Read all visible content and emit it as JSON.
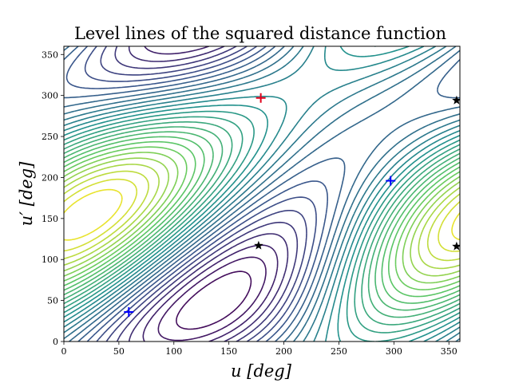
{
  "chart_data": {
    "type": "contour",
    "title": "Level lines of the squared distance function",
    "xlabel": "u [deg]",
    "ylabel": "u′ [deg]",
    "xlim": [
      0,
      360
    ],
    "ylim": [
      0,
      360
    ],
    "xticks": [
      "0",
      "50",
      "100",
      "150",
      "200",
      "250",
      "300",
      "350"
    ],
    "yticks": [
      "0",
      "50",
      "100",
      "150",
      "200",
      "250",
      "300",
      "350"
    ],
    "colormap": [
      "#440154",
      "#3b528b",
      "#21918c",
      "#5ec962",
      "#fde725"
    ],
    "grid": false,
    "markers": [
      {
        "kind": "plus",
        "color": "#e0001b",
        "x": 179,
        "y": 297
      },
      {
        "kind": "plus",
        "color": "#0000ff",
        "x": 297,
        "y": 196
      },
      {
        "kind": "plus",
        "color": "#0000ff",
        "x": 59,
        "y": 36
      },
      {
        "kind": "star",
        "color": "#000000",
        "x": 177,
        "y": 117
      },
      {
        "kind": "star",
        "color": "#000000",
        "x": 357,
        "y": 294
      },
      {
        "kind": "star",
        "color": "#000000",
        "x": 357,
        "y": 116
      }
    ]
  }
}
